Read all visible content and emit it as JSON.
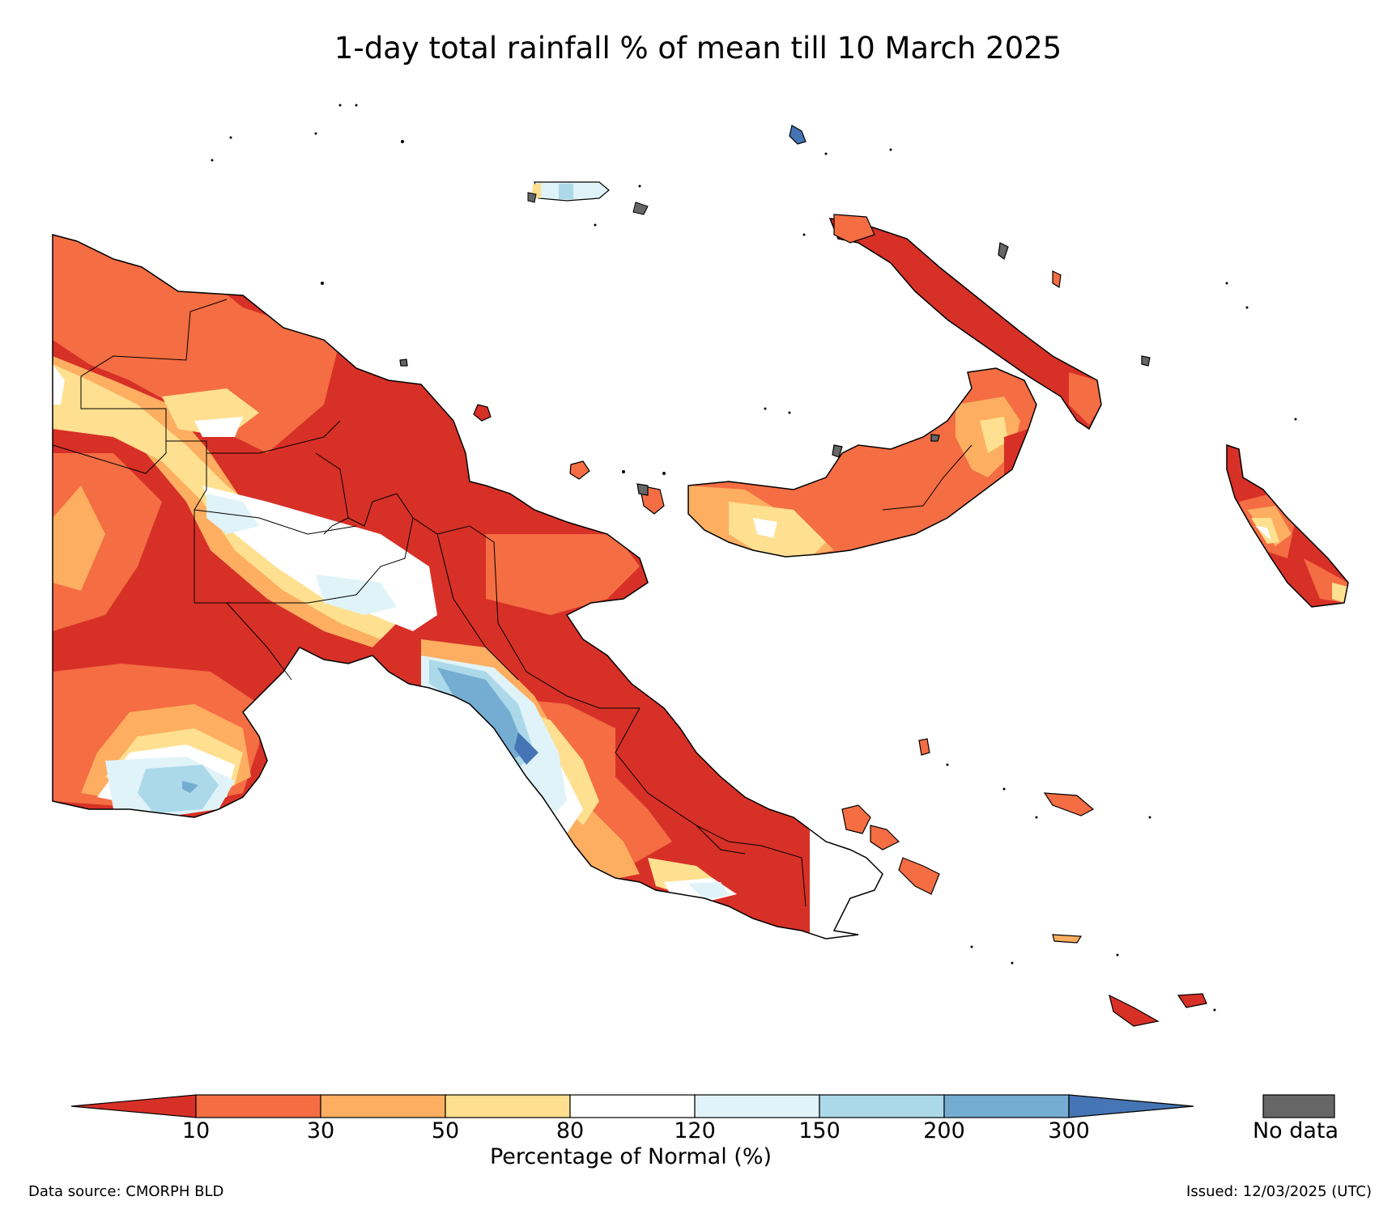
{
  "title": "1-day total rainfall % of mean till 10 March 2025",
  "legend": {
    "title": "Percentage of Normal (%)",
    "ticks": [
      "10",
      "30",
      "50",
      "80",
      "120",
      "150",
      "200",
      "300"
    ],
    "bins": [
      {
        "range": "<10",
        "color": "#d73027"
      },
      {
        "range": "10-30",
        "color": "#f46d43"
      },
      {
        "range": "30-50",
        "color": "#fdae61"
      },
      {
        "range": "50-80",
        "color": "#fee090"
      },
      {
        "range": "80-120",
        "color": "#ffffff"
      },
      {
        "range": "120-150",
        "color": "#e0f3f8"
      },
      {
        "range": "150-200",
        "color": "#abd9e9"
      },
      {
        "range": "200-300",
        "color": "#74add1"
      },
      {
        "range": ">300",
        "color": "#4575b4"
      }
    ],
    "no_data_label": "No data",
    "no_data_color": "#666666"
  },
  "footer": {
    "source": "Data source: CMORPH BLD",
    "issued": "Issued: 12/03/2025 (UTC)"
  },
  "map": {
    "region": "Papua New Guinea",
    "variable": "1-day total rainfall percentage of mean"
  }
}
